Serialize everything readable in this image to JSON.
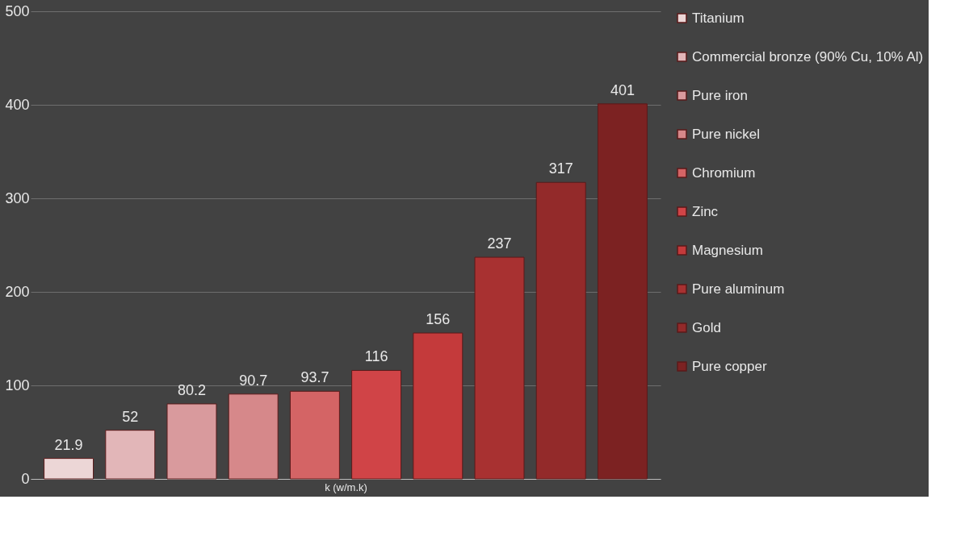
{
  "chart_data": {
    "type": "bar",
    "xlabel": "k (w/m.k)",
    "categories": [
      null
    ],
    "series": [
      {
        "name": "Titanium",
        "color": "#ecd6d6",
        "values": [
          21.9
        ]
      },
      {
        "name": "Commercial bronze (90% Cu, 10% Al)",
        "color": "#e2b6b8",
        "values": [
          52
        ]
      },
      {
        "name": "Pure iron",
        "color": "#d99a9d",
        "values": [
          80.2
        ]
      },
      {
        "name": "Pure nickel",
        "color": "#d6888a",
        "values": [
          90.7
        ]
      },
      {
        "name": "Chromium",
        "color": "#d46465",
        "values": [
          93.7
        ]
      },
      {
        "name": "Zinc",
        "color": "#d04447",
        "values": [
          116
        ]
      },
      {
        "name": "Magnesium",
        "color": "#c43a3b",
        "values": [
          156
        ]
      },
      {
        "name": "Pure aluminum",
        "color": "#a83131",
        "values": [
          237
        ]
      },
      {
        "name": "Gold",
        "color": "#932a2a",
        "values": [
          317
        ]
      },
      {
        "name": "Pure copper",
        "color": "#7c2222",
        "values": [
          401
        ]
      }
    ],
    "ylim": [
      0,
      500
    ],
    "yticks": [
      0,
      100,
      200,
      300,
      400,
      500
    ],
    "grid": "y",
    "legend": "right",
    "tick_labels": "y",
    "data_labels": true
  }
}
